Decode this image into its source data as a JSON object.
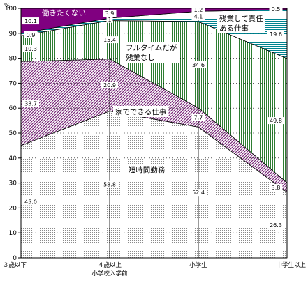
{
  "chart_data": {
    "type": "area",
    "stacked": true,
    "ylabel": "%",
    "ylim": [
      0,
      100
    ],
    "yticks": [
      0,
      10,
      20,
      30,
      40,
      50,
      60,
      70,
      80,
      90,
      100
    ],
    "categories": [
      "３歳以下",
      "４歳以上\n小学校入学前",
      "小学生",
      "中学生以上"
    ],
    "category_lines": [
      [
        "３歳以下"
      ],
      [
        "４歳以上",
        "小学校入学前"
      ],
      [
        "小学生"
      ],
      [
        "中学生以上"
      ]
    ],
    "series": [
      {
        "name": "短時間勤務",
        "values": [
          45.0,
          58.8,
          52.4,
          26.3
        ],
        "labels": [
          "45.0",
          "58.8",
          "52.4",
          "26.3"
        ],
        "fill": "dots",
        "color": "#9a9a9a"
      },
      {
        "name": "家でできる仕事",
        "values": [
          33.7,
          20.9,
          7.7,
          3.8
        ],
        "labels": [
          "33.7",
          "20.9",
          "7.7",
          "3.8"
        ],
        "fill": "diagonal",
        "color": "#7a2a7a"
      },
      {
        "name": "フルタイムだが残業なし",
        "name_lines": [
          "フルタイムだが",
          "残業なし"
        ],
        "values": [
          10.3,
          15.4,
          34.6,
          49.8
        ],
        "labels": [
          "10.3",
          "15.4",
          "34.6",
          "49.8"
        ],
        "fill": "vertical",
        "color": "#2e7d32"
      },
      {
        "name": "残業して責任ある仕事",
        "name_lines": [
          "残業して責任",
          "ある仕事"
        ],
        "values": [
          0.9,
          1.0,
          4.1,
          19.6
        ],
        "labels": [
          "0.9",
          "1",
          "4.1",
          "19.6"
        ],
        "fill": "horizontal",
        "color": "#00838f"
      },
      {
        "name": "働きたくない",
        "values": [
          10.1,
          3.9,
          1.2,
          0.5
        ],
        "labels": [
          "10.1",
          "3.9",
          "1.2",
          "0.5"
        ],
        "fill": "solid",
        "color": "#800080"
      }
    ],
    "grid": true,
    "legend": "none"
  }
}
